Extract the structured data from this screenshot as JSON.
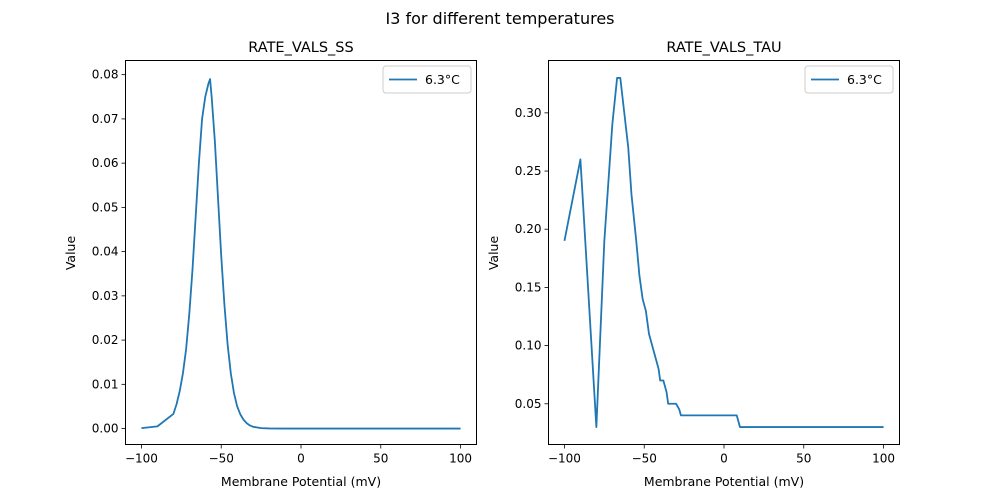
{
  "figure": {
    "suptitle": "I3 for different temperatures"
  },
  "chart_data": [
    {
      "type": "line",
      "title": "RATE_VALS_SS",
      "xlabel": "Membrane Potential (mV)",
      "ylabel": "Value",
      "xlim": [
        -110,
        110
      ],
      "ylim": [
        -0.0036,
        0.0832
      ],
      "xticks": [
        -100,
        -50,
        0,
        50,
        100
      ],
      "xtick_labels": [
        "−100",
        "−50",
        "0",
        "50",
        "100"
      ],
      "yticks": [
        0.0,
        0.01,
        0.02,
        0.03,
        0.04,
        0.05,
        0.06,
        0.07,
        0.08
      ],
      "ytick_labels": [
        "0.00",
        "0.01",
        "0.02",
        "0.03",
        "0.04",
        "0.05",
        "0.06",
        "0.07",
        "0.08"
      ],
      "legend": {
        "placement": "upper-right",
        "entries": [
          "6.3°C"
        ]
      },
      "grid": false,
      "series": [
        {
          "name": "6.3°C",
          "color": "#1f77b4",
          "x": [
            -100,
            -90,
            -80,
            -78,
            -76,
            -74,
            -72,
            -70,
            -68,
            -66,
            -64,
            -62,
            -60,
            -58,
            -57,
            -56,
            -54,
            -52,
            -50,
            -48,
            -46,
            -44,
            -42,
            -40,
            -38,
            -36,
            -34,
            -32,
            -30,
            -25,
            -20,
            -10,
            0,
            10,
            20,
            40,
            60,
            80,
            100
          ],
          "y": [
            0.0001,
            0.0005,
            0.0033,
            0.0055,
            0.0085,
            0.0125,
            0.018,
            0.026,
            0.036,
            0.048,
            0.06,
            0.07,
            0.075,
            0.078,
            0.079,
            0.075,
            0.065,
            0.052,
            0.039,
            0.028,
            0.019,
            0.0125,
            0.008,
            0.005,
            0.0032,
            0.002,
            0.0012,
            0.0007,
            0.0004,
            0.0001,
            3e-05,
            0.0,
            0.0,
            0.0,
            0.0,
            0.0,
            0.0,
            0.0,
            0.0
          ]
        }
      ]
    },
    {
      "type": "line",
      "title": "RATE_VALS_TAU",
      "xlabel": "Membrane Potential (mV)",
      "ylabel": "Value",
      "xlim": [
        -110,
        110
      ],
      "ylim": [
        0.015,
        0.345
      ],
      "xticks": [
        -100,
        -50,
        0,
        50,
        100
      ],
      "xtick_labels": [
        "−100",
        "−50",
        "0",
        "50",
        "100"
      ],
      "yticks": [
        0.05,
        0.1,
        0.15,
        0.2,
        0.25,
        0.3
      ],
      "ytick_labels": [
        "0.05",
        "0.10",
        "0.15",
        "0.20",
        "0.25",
        "0.30"
      ],
      "legend": {
        "placement": "upper-right",
        "entries": [
          "6.3°C"
        ]
      },
      "grid": false,
      "series": [
        {
          "name": "6.3°C",
          "color": "#1f77b4",
          "x": [
            -100,
            -90,
            -80,
            -75,
            -72,
            -70,
            -67,
            -65,
            -60,
            -58,
            -55,
            -53,
            -51,
            -49,
            -47,
            -45,
            -43,
            -41,
            -40,
            -38,
            -36,
            -35,
            -32,
            -30,
            -28,
            -27,
            0,
            8,
            10,
            20,
            50,
            100
          ],
          "y": [
            0.19,
            0.26,
            0.03,
            0.19,
            0.25,
            0.29,
            0.33,
            0.33,
            0.27,
            0.23,
            0.19,
            0.16,
            0.14,
            0.13,
            0.11,
            0.1,
            0.09,
            0.08,
            0.07,
            0.07,
            0.06,
            0.05,
            0.05,
            0.05,
            0.045,
            0.04,
            0.04,
            0.04,
            0.03,
            0.03,
            0.03,
            0.03
          ]
        }
      ]
    }
  ]
}
